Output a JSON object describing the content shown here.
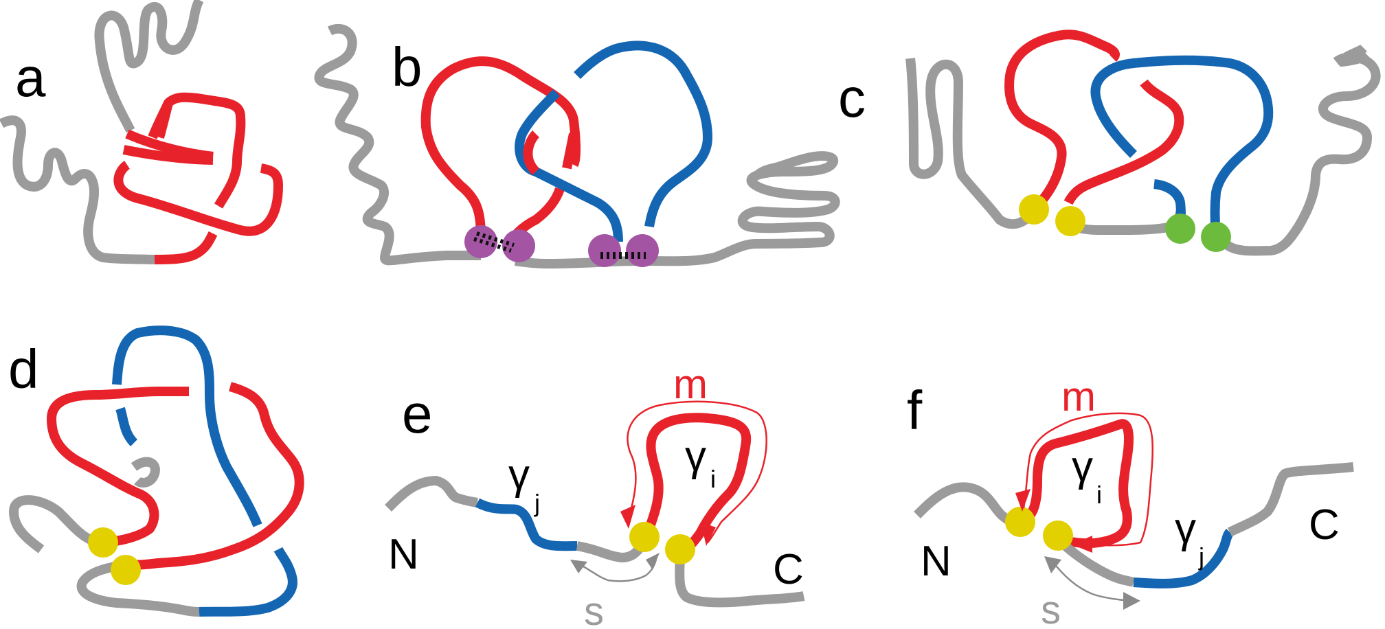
{
  "panels": {
    "a": {
      "label": "a"
    },
    "b": {
      "label": "b"
    },
    "c": {
      "label": "c"
    },
    "d": {
      "label": "d"
    },
    "e": {
      "label": "e",
      "n_term": "N",
      "c_term": "C",
      "gamma_j": "γ",
      "gamma_j_sub": "j",
      "gamma_i": "γ",
      "gamma_i_sub": "i",
      "m": "m",
      "s": "s"
    },
    "f": {
      "label": "f",
      "n_term": "N",
      "c_term": "C",
      "gamma_j": "γ",
      "gamma_j_sub": "j",
      "gamma_i": "γ",
      "gamma_i_sub": "i",
      "m": "m",
      "s": "s"
    }
  },
  "colors": {
    "chain": "#9b9b9b",
    "loop_red": "#e8222a",
    "loop_blue": "#1466b3",
    "contact_yellow": "#e2d000",
    "contact_purple": "#a355a3",
    "contact_green": "#6cbb3c"
  }
}
